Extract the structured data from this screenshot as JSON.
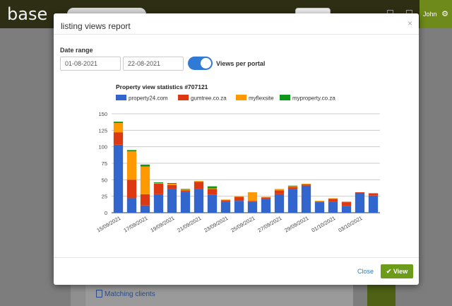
{
  "app": {
    "logo": "base",
    "user": "John"
  },
  "background": {
    "matching_clients_link": "Matching clients"
  },
  "modal": {
    "title": "listing views report",
    "close_glyph": "×",
    "date_range_label": "Date range",
    "date_from": "01-08-2021",
    "date_to": "22-08-2021",
    "views_per_portal_label": "Views per portal",
    "views_per_portal_enabled": true,
    "footer": {
      "close_label": "Close",
      "view_label": "View"
    }
  },
  "colors": {
    "property24": "#3366cc",
    "gumtree": "#dc3912",
    "myflexsite": "#ff9900",
    "myproperty": "#109618",
    "accent": "#6d9b1a"
  },
  "chart_data": {
    "type": "bar",
    "stacked": true,
    "title": "Property view statistics #707121",
    "ylim": [
      0,
      150
    ],
    "yticks": [
      0,
      25,
      50,
      75,
      100,
      125,
      150
    ],
    "xtick_labels": [
      "15/09/2021",
      "17/09/2021",
      "19/09/2021",
      "21/09/2021",
      "23/09/2021",
      "25/09/2021",
      "27/09/2021",
      "29/09/2021",
      "01/10/2021",
      "03/10/2021"
    ],
    "categories": [
      "15/09/2021",
      "16/09/2021",
      "17/09/2021",
      "18/09/2021",
      "19/09/2021",
      "20/09/2021",
      "21/09/2021",
      "22/09/2021",
      "23/09/2021",
      "24/09/2021",
      "25/09/2021",
      "26/09/2021",
      "27/09/2021",
      "28/09/2021",
      "29/09/2021",
      "30/09/2021",
      "01/10/2021",
      "02/10/2021",
      "03/10/2021",
      "04/10/2021"
    ],
    "series": [
      {
        "name": "property24.com",
        "color": "#3366cc",
        "values": [
          103,
          22,
          11,
          28,
          36,
          32,
          36,
          27,
          17,
          18,
          17,
          21,
          28,
          36,
          41,
          16,
          17,
          10,
          30,
          26
        ]
      },
      {
        "name": "gumtree.co.za",
        "color": "#dc3912",
        "values": [
          19,
          28,
          17,
          16,
          6,
          2,
          11,
          9,
          2,
          6,
          1,
          2,
          6,
          3,
          2,
          1,
          4,
          6,
          1,
          3
        ]
      },
      {
        "name": "myflexsite",
        "color": "#ff9900",
        "values": [
          14,
          43,
          42,
          1,
          2,
          1,
          1,
          1,
          1,
          1,
          13,
          1,
          2,
          1,
          1,
          1,
          1,
          1,
          0,
          1
        ]
      },
      {
        "name": "myproperty.co.za",
        "color": "#109618",
        "values": [
          2,
          2,
          3,
          1,
          1,
          1,
          0,
          3,
          0,
          0,
          0,
          0,
          0,
          1,
          0,
          0,
          0,
          0,
          0,
          0
        ]
      }
    ]
  }
}
